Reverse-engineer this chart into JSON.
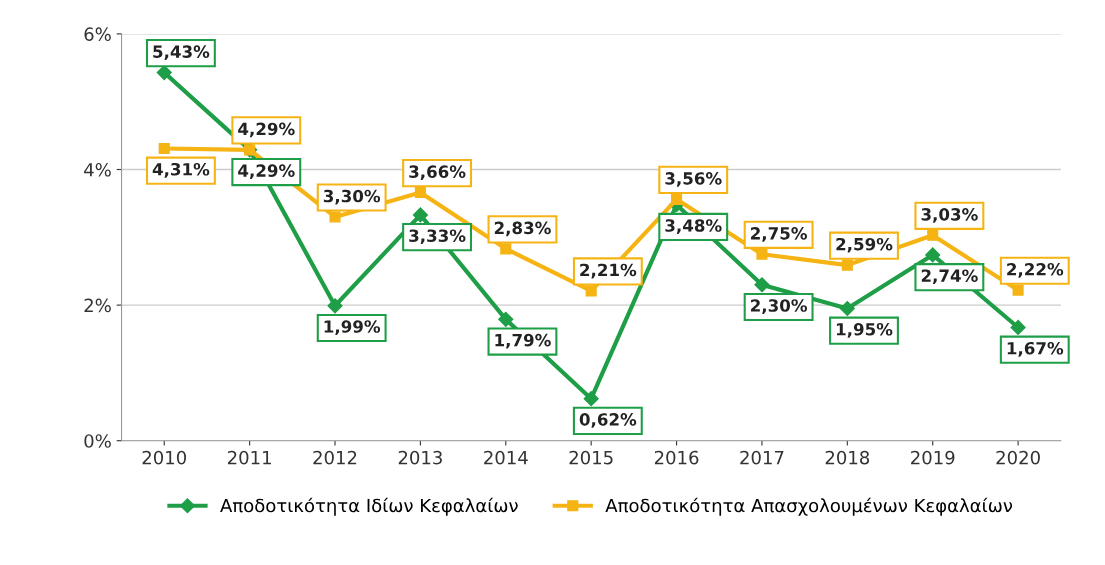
{
  "chart_data": {
    "type": "line",
    "categories": [
      "2010",
      "2011",
      "2012",
      "2013",
      "2014",
      "2015",
      "2016",
      "2017",
      "2018",
      "2019",
      "2020"
    ],
    "series": [
      {
        "name": "Αποδοτικότητα Ιδίων Κεφαλαίων",
        "color": "#1f9e48",
        "marker": "diamond",
        "values": [
          5.43,
          4.29,
          1.99,
          3.33,
          1.79,
          0.62,
          3.48,
          2.3,
          1.95,
          2.74,
          1.67
        ],
        "value_labels": [
          "5,43%",
          "4,29%",
          "1,99%",
          "3,33%",
          "1,79%",
          "0,62%",
          "3,48%",
          "2,30%",
          "1,95%",
          "2,74%",
          "1,67%"
        ]
      },
      {
        "name": "Αποδοτικότητα Απασχολουμένων Κεφαλαίων",
        "color": "#f5b414",
        "marker": "square",
        "values": [
          4.31,
          4.29,
          3.3,
          3.66,
          2.83,
          2.21,
          3.56,
          2.75,
          2.59,
          3.03,
          2.22
        ],
        "value_labels": [
          "4,31%",
          "4,29%",
          "3,30%",
          "3,66%",
          "2,83%",
          "2,21%",
          "3,56%",
          "2,75%",
          "2,59%",
          "3,03%",
          "2,22%"
        ]
      }
    ],
    "ylim": [
      0,
      6
    ],
    "yticks": [
      {
        "value": 0,
        "label": "0%"
      },
      {
        "value": 2,
        "label": "2%"
      },
      {
        "value": 4,
        "label": "4%"
      },
      {
        "value": 6,
        "label": "6%"
      }
    ],
    "grid": "y",
    "legend": "bottom",
    "line_style": "solid"
  }
}
